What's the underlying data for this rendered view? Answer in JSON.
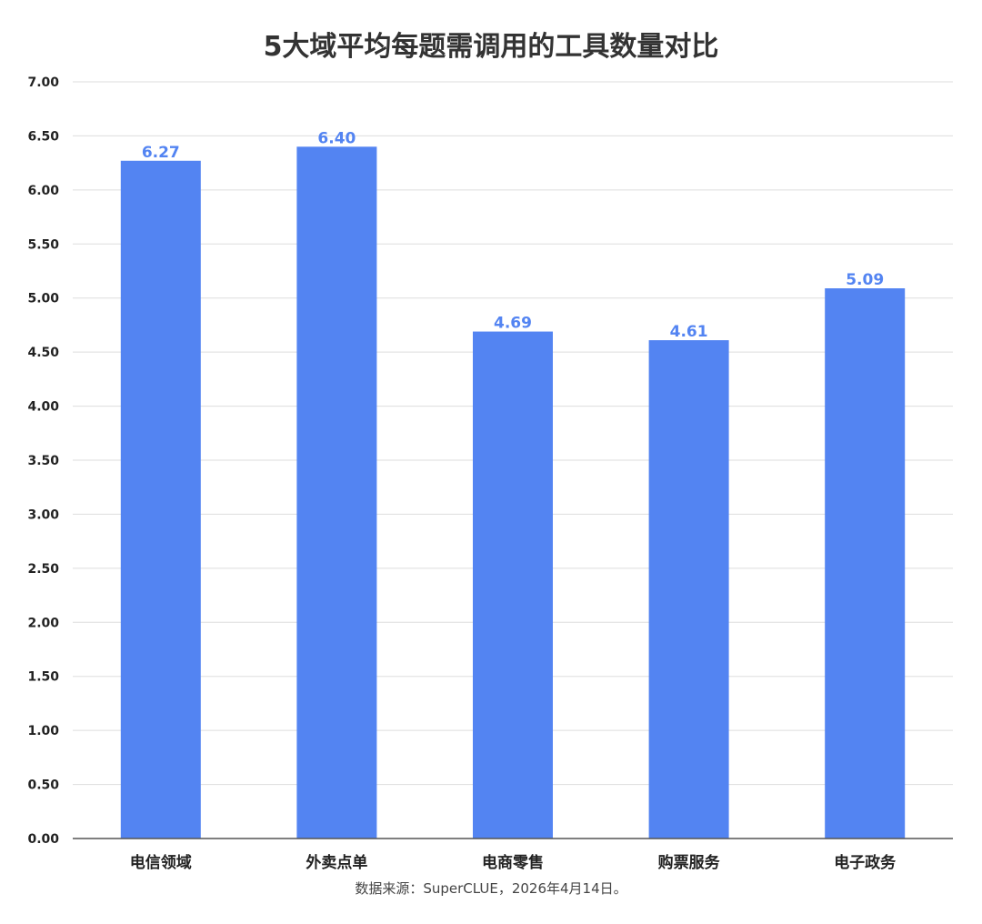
{
  "chart_data": {
    "type": "bar",
    "title": "5大域平均每题需调用的工具数量对比",
    "categories": [
      "电信领域",
      "外卖点单",
      "电商零售",
      "购票服务",
      "电子政务"
    ],
    "values": [
      6.27,
      6.4,
      4.69,
      4.61,
      5.09
    ],
    "value_labels": [
      "6.27",
      "6.40",
      "4.69",
      "4.61",
      "5.09"
    ],
    "ylim": [
      0,
      7
    ],
    "yticks": [
      "0.00",
      "0.50",
      "1.00",
      "1.50",
      "2.00",
      "2.50",
      "3.00",
      "3.50",
      "4.00",
      "4.50",
      "5.00",
      "5.50",
      "6.00",
      "6.50",
      "7.00"
    ],
    "xlabel": "",
    "ylabel": "",
    "grid": true,
    "legend": "none",
    "colors": {
      "bar": "#5384f2",
      "label": "#5384f2",
      "grid": "#dddddd",
      "axis": "#555555",
      "text": "#222222"
    }
  },
  "footer": {
    "source": "数据来源：SuperCLUE，2026年4月14日。"
  }
}
